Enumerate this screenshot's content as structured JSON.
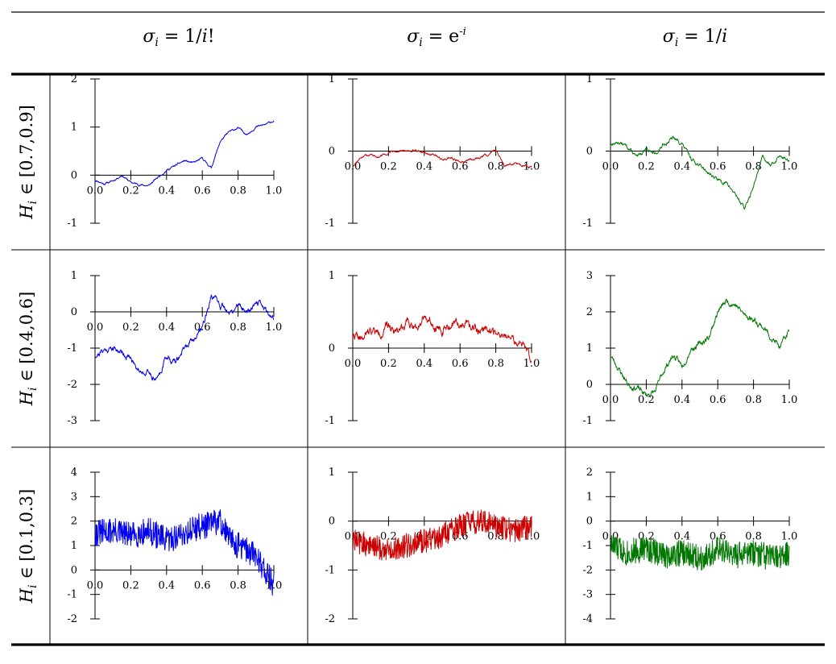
{
  "chart_data": {
    "type": "line",
    "column_headers": [
      {
        "main": "σ",
        "sub": "i",
        "rest": " = 1/",
        "italic_end": "i",
        "tail": "!"
      },
      {
        "main": "σ",
        "sub": "i",
        "rest": " = e",
        "sup": "-i",
        "tail": ""
      },
      {
        "main": "σ",
        "sub": "i",
        "rest": " = 1/",
        "italic_end": "i",
        "tail": ""
      }
    ],
    "row_labels": [
      "H_i ∈ [0.7,0.9]",
      "H_i ∈ [0.4,0.6]",
      "H_i ∈ [0.1,0.3]"
    ],
    "row_label_parts": [
      {
        "var": "H",
        "sub": "i",
        "rest": " ∈ [0.7,0.9]"
      },
      {
        "var": "H",
        "sub": "i",
        "rest": " ∈ [0.4,0.6]"
      },
      {
        "var": "H",
        "sub": "i",
        "rest": " ∈ [0.1,0.3]"
      }
    ],
    "x_ticks": [
      "0.0",
      "0.2",
      "0.4",
      "0.6",
      "0.8",
      "1.0"
    ],
    "xlim": [
      0,
      1
    ],
    "colors": [
      "#0000ee",
      "#cc0000",
      "#007700"
    ],
    "panels": [
      {
        "row": 0,
        "col": 0,
        "color": "#0000ee",
        "ylim": [
          -1,
          2
        ],
        "y_ticks": [
          "2",
          "1",
          "0",
          "-1"
        ],
        "y_tick_values": [
          2,
          1,
          0,
          -1
        ],
        "noise": 0.012,
        "seed": 11,
        "key_x": [
          0,
          0.05,
          0.1,
          0.15,
          0.2,
          0.25,
          0.3,
          0.35,
          0.4,
          0.45,
          0.5,
          0.55,
          0.6,
          0.65,
          0.7,
          0.75,
          0.8,
          0.85,
          0.9,
          0.95,
          1.0
        ],
        "key_y": [
          -0.1,
          -0.18,
          -0.12,
          0.0,
          -0.15,
          -0.2,
          -0.22,
          -0.05,
          0.1,
          0.2,
          0.3,
          0.25,
          0.35,
          0.15,
          0.7,
          0.9,
          0.98,
          0.85,
          1.0,
          1.05,
          1.13
        ]
      },
      {
        "row": 0,
        "col": 1,
        "color": "#cc0000",
        "ylim": [
          -1,
          1
        ],
        "y_ticks": [
          "1",
          "0",
          "-1"
        ],
        "y_tick_values": [
          1,
          0,
          -1
        ],
        "noise": 0.01,
        "seed": 12,
        "key_x": [
          0,
          0.05,
          0.1,
          0.15,
          0.2,
          0.25,
          0.3,
          0.35,
          0.4,
          0.45,
          0.5,
          0.55,
          0.6,
          0.65,
          0.7,
          0.75,
          0.8,
          0.85,
          0.9,
          0.95,
          1.0
        ],
        "key_y": [
          -0.2,
          -0.08,
          -0.05,
          -0.08,
          -0.03,
          0.0,
          0.0,
          0.02,
          -0.02,
          -0.05,
          -0.12,
          -0.1,
          -0.15,
          -0.12,
          -0.1,
          -0.05,
          0.02,
          -0.2,
          -0.18,
          -0.2,
          -0.22
        ]
      },
      {
        "row": 0,
        "col": 2,
        "color": "#007700",
        "ylim": [
          -1,
          1
        ],
        "y_ticks": [
          "1",
          "0",
          "-1"
        ],
        "y_tick_values": [
          1,
          0,
          -1
        ],
        "noise": 0.015,
        "seed": 13,
        "key_x": [
          0,
          0.05,
          0.1,
          0.15,
          0.2,
          0.25,
          0.3,
          0.35,
          0.4,
          0.45,
          0.5,
          0.55,
          0.6,
          0.65,
          0.7,
          0.75,
          0.8,
          0.85,
          0.9,
          0.95,
          1.0
        ],
        "key_y": [
          0.1,
          0.12,
          0.05,
          -0.1,
          0.05,
          -0.05,
          0.1,
          0.18,
          0.1,
          -0.1,
          -0.2,
          -0.3,
          -0.4,
          -0.45,
          -0.6,
          -0.8,
          -0.5,
          -0.05,
          -0.2,
          -0.05,
          -0.15
        ]
      },
      {
        "row": 1,
        "col": 0,
        "color": "#0000ee",
        "ylim": [
          -3,
          1
        ],
        "y_ticks": [
          "1",
          "0",
          "-1",
          "-2",
          "-3"
        ],
        "y_tick_values": [
          1,
          0,
          -1,
          -2,
          -3
        ],
        "noise": 0.05,
        "seed": 21,
        "key_x": [
          0,
          0.05,
          0.1,
          0.15,
          0.2,
          0.25,
          0.3,
          0.35,
          0.4,
          0.45,
          0.5,
          0.55,
          0.6,
          0.65,
          0.7,
          0.75,
          0.8,
          0.85,
          0.9,
          0.95,
          1.0
        ],
        "key_y": [
          -1.2,
          -1.05,
          -1.0,
          -1.1,
          -1.3,
          -1.6,
          -1.7,
          -1.85,
          -1.2,
          -1.4,
          -1.0,
          -0.8,
          -0.4,
          0.4,
          0.2,
          -0.1,
          0.2,
          0.0,
          0.3,
          0.1,
          -0.2
        ]
      },
      {
        "row": 1,
        "col": 1,
        "color": "#cc0000",
        "ylim": [
          -1,
          1
        ],
        "y_ticks": [
          "1",
          "0",
          "-1"
        ],
        "y_tick_values": [
          1,
          0,
          -1
        ],
        "noise": 0.035,
        "seed": 22,
        "key_x": [
          0,
          0.05,
          0.1,
          0.15,
          0.2,
          0.25,
          0.3,
          0.35,
          0.4,
          0.45,
          0.5,
          0.55,
          0.6,
          0.65,
          0.7,
          0.75,
          0.8,
          0.85,
          0.9,
          0.95,
          1.0
        ],
        "key_y": [
          0.2,
          0.1,
          0.25,
          0.2,
          0.3,
          0.25,
          0.35,
          0.3,
          0.45,
          0.35,
          0.25,
          0.3,
          0.35,
          0.3,
          0.25,
          0.3,
          0.2,
          0.15,
          0.1,
          0.05,
          -0.15
        ]
      },
      {
        "row": 1,
        "col": 2,
        "color": "#007700",
        "ylim": [
          -1,
          3
        ],
        "y_ticks": [
          "3",
          "2",
          "1",
          "0",
          "-1"
        ],
        "y_tick_values": [
          3,
          2,
          1,
          0,
          -1
        ],
        "noise": 0.05,
        "seed": 23,
        "key_x": [
          0,
          0.05,
          0.1,
          0.15,
          0.2,
          0.25,
          0.3,
          0.35,
          0.4,
          0.45,
          0.5,
          0.55,
          0.6,
          0.65,
          0.7,
          0.75,
          0.8,
          0.85,
          0.9,
          0.95,
          1.0
        ],
        "key_y": [
          0.8,
          0.4,
          0.0,
          -0.1,
          -0.3,
          -0.2,
          0.4,
          0.8,
          0.5,
          1.0,
          1.1,
          1.3,
          2.0,
          2.3,
          2.2,
          1.9,
          1.8,
          1.6,
          1.3,
          1.0,
          1.5
        ]
      },
      {
        "row": 2,
        "col": 0,
        "color": "#0000ee",
        "ylim": [
          -2,
          4
        ],
        "y_ticks": [
          "4",
          "3",
          "2",
          "1",
          "0",
          "-1",
          "-2"
        ],
        "y_tick_values": [
          4,
          3,
          2,
          1,
          0,
          -1,
          -2
        ],
        "noise": 0.55,
        "seed": 31,
        "key_x": [
          0,
          0.1,
          0.2,
          0.3,
          0.4,
          0.5,
          0.55,
          0.6,
          0.65,
          0.7,
          0.75,
          0.8,
          0.85,
          0.9,
          0.95,
          1.0
        ],
        "key_y": [
          1.5,
          1.6,
          1.4,
          1.6,
          1.2,
          1.5,
          1.7,
          1.8,
          1.9,
          2.0,
          1.3,
          1.0,
          0.8,
          0.6,
          0.0,
          -0.6
        ]
      },
      {
        "row": 2,
        "col": 1,
        "color": "#cc0000",
        "ylim": [
          -2,
          1
        ],
        "y_ticks": [
          "1",
          "0",
          "-1",
          "-2"
        ],
        "y_tick_values": [
          1,
          0,
          -1,
          -2
        ],
        "noise": 0.25,
        "seed": 32,
        "key_x": [
          0,
          0.1,
          0.2,
          0.3,
          0.4,
          0.5,
          0.6,
          0.7,
          0.8,
          0.9,
          1.0
        ],
        "key_y": [
          -0.4,
          -0.5,
          -0.6,
          -0.5,
          -0.4,
          -0.3,
          -0.1,
          0.0,
          -0.1,
          -0.2,
          -0.1
        ]
      },
      {
        "row": 2,
        "col": 2,
        "color": "#007700",
        "ylim": [
          -4,
          2
        ],
        "y_ticks": [
          "2",
          "1",
          "0",
          "-1",
          "-2",
          "-3",
          "-4"
        ],
        "y_tick_values": [
          2,
          1,
          0,
          -1,
          -2,
          -3,
          -4
        ],
        "noise": 0.55,
        "seed": 33,
        "key_x": [
          0,
          0.1,
          0.2,
          0.3,
          0.4,
          0.5,
          0.6,
          0.7,
          0.8,
          0.9,
          1.0
        ],
        "key_y": [
          -1.0,
          -1.3,
          -1.1,
          -1.4,
          -1.3,
          -1.5,
          -1.2,
          -1.4,
          -1.3,
          -1.5,
          -1.4
        ]
      }
    ]
  }
}
